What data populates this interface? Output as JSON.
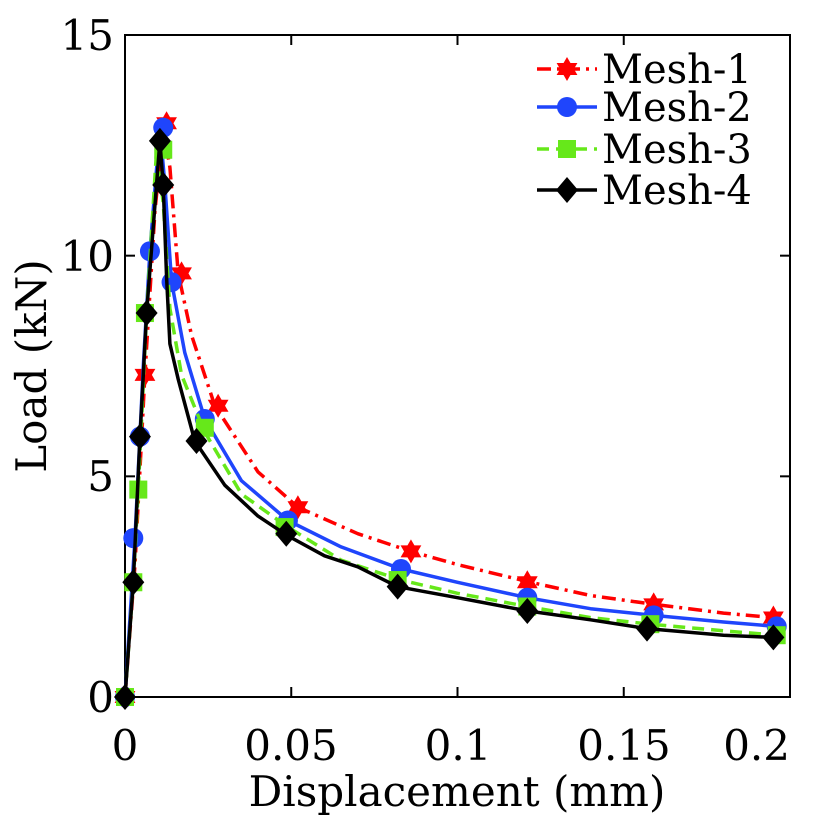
{
  "chart_data": {
    "type": "line",
    "title": "",
    "xlabel": "Displacement (mm)",
    "ylabel": "Load (kN)",
    "xlim": [
      0,
      0.2
    ],
    "ylim": [
      0,
      15
    ],
    "xticks": [
      0,
      0.05,
      0.1,
      0.15,
      0.2
    ],
    "xtick_labels": [
      "0",
      "0.05",
      "0.1",
      "0.15",
      "0.2"
    ],
    "yticks": [
      0,
      5,
      10,
      15
    ],
    "ytick_labels": [
      "0",
      "5",
      "10",
      "15"
    ],
    "grid": false,
    "legend_position": "top-right",
    "series": [
      {
        "name": "Mesh-1",
        "color": "#ff0000",
        "line_style": "dashdot",
        "marker": "hexagram",
        "line": [
          [
            0,
            0
          ],
          [
            0.003,
            3.0
          ],
          [
            0.006,
            7.3
          ],
          [
            0.009,
            11.0
          ],
          [
            0.0115,
            12.9
          ],
          [
            0.0135,
            12.0
          ],
          [
            0.016,
            9.6
          ],
          [
            0.02,
            8.2
          ],
          [
            0.027,
            6.6
          ],
          [
            0.04,
            5.1
          ],
          [
            0.052,
            4.3
          ],
          [
            0.07,
            3.7
          ],
          [
            0.086,
            3.3
          ],
          [
            0.1,
            3.0
          ],
          [
            0.122,
            2.6
          ],
          [
            0.14,
            2.3
          ],
          [
            0.159,
            2.1
          ],
          [
            0.18,
            1.9
          ],
          [
            0.195,
            1.8
          ]
        ],
        "markers": [
          [
            0,
            0
          ],
          [
            0.006,
            7.3
          ],
          [
            0.0125,
            13.0
          ],
          [
            0.017,
            9.6
          ],
          [
            0.028,
            6.6
          ],
          [
            0.052,
            4.3
          ],
          [
            0.086,
            3.3
          ],
          [
            0.121,
            2.6
          ],
          [
            0.159,
            2.1
          ],
          [
            0.195,
            1.8
          ]
        ]
      },
      {
        "name": "Mesh-2",
        "color": "#1f45fc",
        "line_style": "solid",
        "marker": "circle",
        "line": [
          [
            0,
            0
          ],
          [
            0.003,
            3.6
          ],
          [
            0.0055,
            7.5
          ],
          [
            0.0075,
            10.1
          ],
          [
            0.0105,
            12.9
          ],
          [
            0.012,
            11.6
          ],
          [
            0.014,
            9.4
          ],
          [
            0.018,
            7.8
          ],
          [
            0.024,
            6.3
          ],
          [
            0.035,
            4.9
          ],
          [
            0.049,
            4.0
          ],
          [
            0.065,
            3.4
          ],
          [
            0.083,
            2.9
          ],
          [
            0.1,
            2.6
          ],
          [
            0.121,
            2.25
          ],
          [
            0.14,
            2.0
          ],
          [
            0.159,
            1.85
          ],
          [
            0.18,
            1.7
          ],
          [
            0.196,
            1.6
          ]
        ],
        "markers": [
          [
            0,
            0
          ],
          [
            0.0025,
            3.6
          ],
          [
            0.0045,
            5.9
          ],
          [
            0.0075,
            10.1
          ],
          [
            0.0115,
            12.9
          ],
          [
            0.014,
            9.4
          ],
          [
            0.024,
            6.3
          ],
          [
            0.049,
            4.0
          ],
          [
            0.083,
            2.9
          ],
          [
            0.121,
            2.25
          ],
          [
            0.159,
            1.85
          ],
          [
            0.196,
            1.6
          ]
        ]
      },
      {
        "name": "Mesh-3",
        "color": "#66e81a",
        "line_style": "dashed",
        "marker": "square",
        "line": [
          [
            0,
            0
          ],
          [
            0.0025,
            2.6
          ],
          [
            0.004,
            4.7
          ],
          [
            0.0065,
            8.7
          ],
          [
            0.0095,
            12.4
          ],
          [
            0.0115,
            11.2
          ],
          [
            0.0135,
            8.8
          ],
          [
            0.017,
            7.3
          ],
          [
            0.024,
            6.0
          ],
          [
            0.035,
            4.6
          ],
          [
            0.049,
            3.85
          ],
          [
            0.065,
            3.1
          ],
          [
            0.083,
            2.65
          ],
          [
            0.1,
            2.35
          ],
          [
            0.121,
            2.05
          ],
          [
            0.14,
            1.8
          ],
          [
            0.158,
            1.65
          ],
          [
            0.18,
            1.5
          ],
          [
            0.196,
            1.4
          ]
        ],
        "markers": [
          [
            0,
            0
          ],
          [
            0.0025,
            2.6
          ],
          [
            0.004,
            4.7
          ],
          [
            0.006,
            8.7
          ],
          [
            0.0115,
            12.4
          ],
          [
            0.024,
            6.1
          ],
          [
            0.048,
            3.85
          ],
          [
            0.082,
            2.65
          ],
          [
            0.121,
            2.05
          ],
          [
            0.158,
            1.65
          ],
          [
            0.196,
            1.4
          ]
        ]
      },
      {
        "name": "Mesh-4",
        "color": "#000000",
        "line_style": "solid",
        "marker": "diamond",
        "line": [
          [
            0,
            0
          ],
          [
            0.0025,
            2.6
          ],
          [
            0.0045,
            5.9
          ],
          [
            0.0065,
            8.7
          ],
          [
            0.0105,
            12.6
          ],
          [
            0.0115,
            11.6
          ],
          [
            0.0125,
            9.5
          ],
          [
            0.0135,
            8.0
          ],
          [
            0.016,
            7.2
          ],
          [
            0.021,
            5.8
          ],
          [
            0.03,
            4.8
          ],
          [
            0.04,
            4.1
          ],
          [
            0.049,
            3.65
          ],
          [
            0.06,
            3.2
          ],
          [
            0.07,
            2.95
          ],
          [
            0.082,
            2.5
          ],
          [
            0.1,
            2.25
          ],
          [
            0.121,
            1.95
          ],
          [
            0.14,
            1.75
          ],
          [
            0.157,
            1.55
          ],
          [
            0.18,
            1.4
          ],
          [
            0.195,
            1.35
          ]
        ],
        "markers": [
          [
            0,
            0
          ],
          [
            0.0025,
            2.6
          ],
          [
            0.0045,
            5.9
          ],
          [
            0.0065,
            8.7
          ],
          [
            0.0105,
            12.6
          ],
          [
            0.0115,
            11.6
          ],
          [
            0.0215,
            5.8
          ],
          [
            0.0485,
            3.7
          ],
          [
            0.082,
            2.5
          ],
          [
            0.121,
            1.95
          ],
          [
            0.157,
            1.55
          ],
          [
            0.195,
            1.35
          ]
        ]
      }
    ]
  }
}
